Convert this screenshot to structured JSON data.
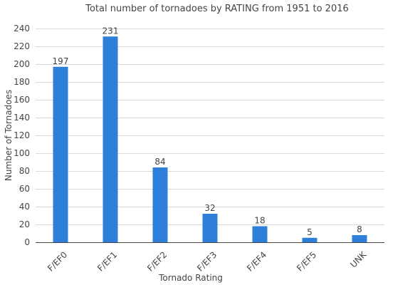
{
  "chart_data": {
    "type": "bar",
    "title": "Total number of tornadoes by RATING from 1951 to 2016",
    "xlabel": "Tornado Rating",
    "ylabel": "Number of Tornadoes",
    "categories": [
      "F/EF0",
      "F/EF1",
      "F/EF2",
      "F/EF3",
      "F/EF4",
      "F/EF5",
      "UNK"
    ],
    "values": [
      197,
      231,
      84,
      32,
      18,
      5,
      8
    ],
    "data_labels": [
      "197",
      "231",
      "84",
      "32",
      "18",
      "5",
      "8"
    ],
    "ylim": [
      0,
      240
    ],
    "yticks": [
      0,
      20,
      40,
      60,
      80,
      100,
      120,
      140,
      160,
      180,
      200,
      220,
      240
    ],
    "grid": true,
    "legend": "none",
    "bar_color": "#2e7fd9"
  }
}
